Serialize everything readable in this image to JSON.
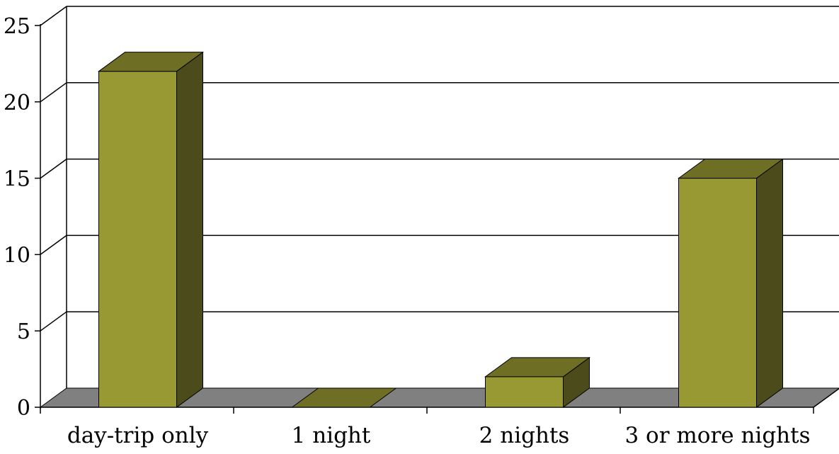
{
  "chart_data": {
    "type": "bar",
    "style": "3d",
    "categories": [
      "day-trip only",
      "1 night",
      "2 nights",
      "3 or more nights"
    ],
    "values": [
      22,
      0,
      2,
      15
    ],
    "ylim": [
      0,
      25
    ],
    "yticks": [
      0,
      5,
      10,
      15,
      20,
      25
    ],
    "ytick_labels": [
      "0",
      "5",
      "10",
      "15",
      "20",
      "25"
    ],
    "grid": true,
    "legend": "none",
    "colors": {
      "bar_front": "#999933",
      "bar_top": "#6e6e24",
      "bar_side": "#4b4b1b",
      "floor": "#808080",
      "grid": "#000000"
    }
  }
}
